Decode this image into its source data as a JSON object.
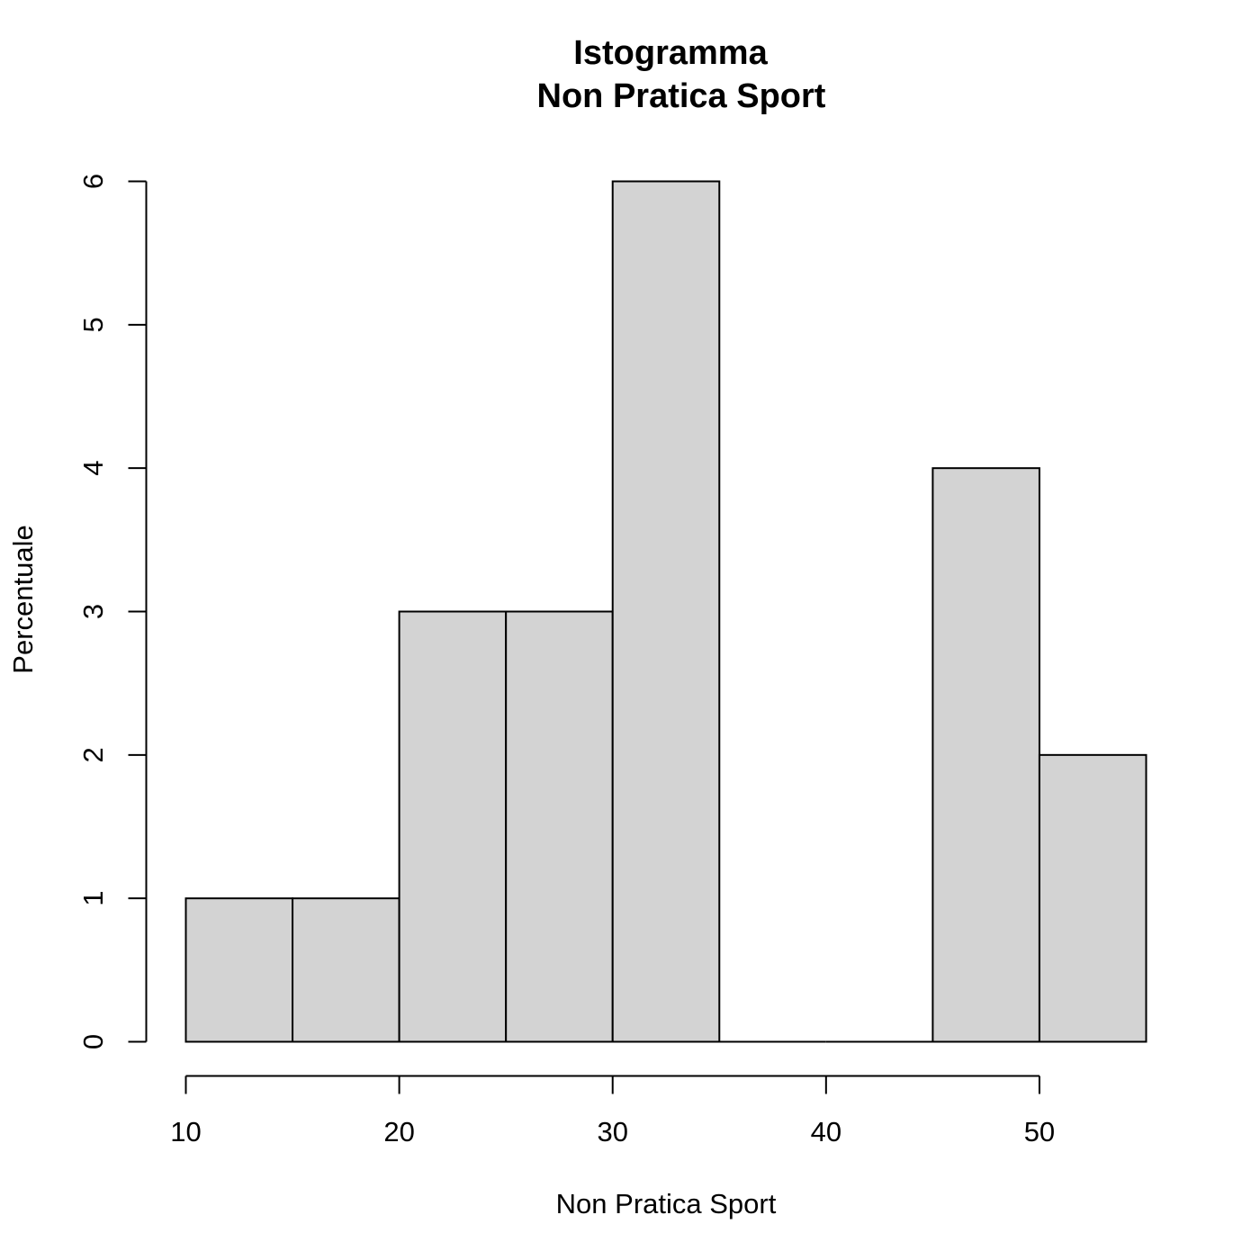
{
  "chart_data": {
    "type": "bar",
    "title": "Istogramma",
    "subtitle": "Non Pratica Sport",
    "xlabel": "Non Pratica Sport",
    "ylabel": "Percentuale",
    "bins": [
      [
        10,
        15
      ],
      [
        15,
        20
      ],
      [
        20,
        25
      ],
      [
        25,
        30
      ],
      [
        30,
        35
      ],
      [
        35,
        40
      ],
      [
        40,
        45
      ],
      [
        45,
        50
      ],
      [
        50,
        55
      ]
    ],
    "values": [
      1,
      1,
      3,
      3,
      6,
      0,
      0,
      4,
      2
    ],
    "xlim": [
      10,
      55
    ],
    "ylim": [
      0,
      6
    ],
    "xticks": [
      10,
      20,
      30,
      40,
      50
    ],
    "yticks": [
      0,
      1,
      2,
      3,
      4,
      5,
      6
    ],
    "grid": false,
    "bar_color": "#d3d3d3",
    "edge_color": "#000000"
  }
}
